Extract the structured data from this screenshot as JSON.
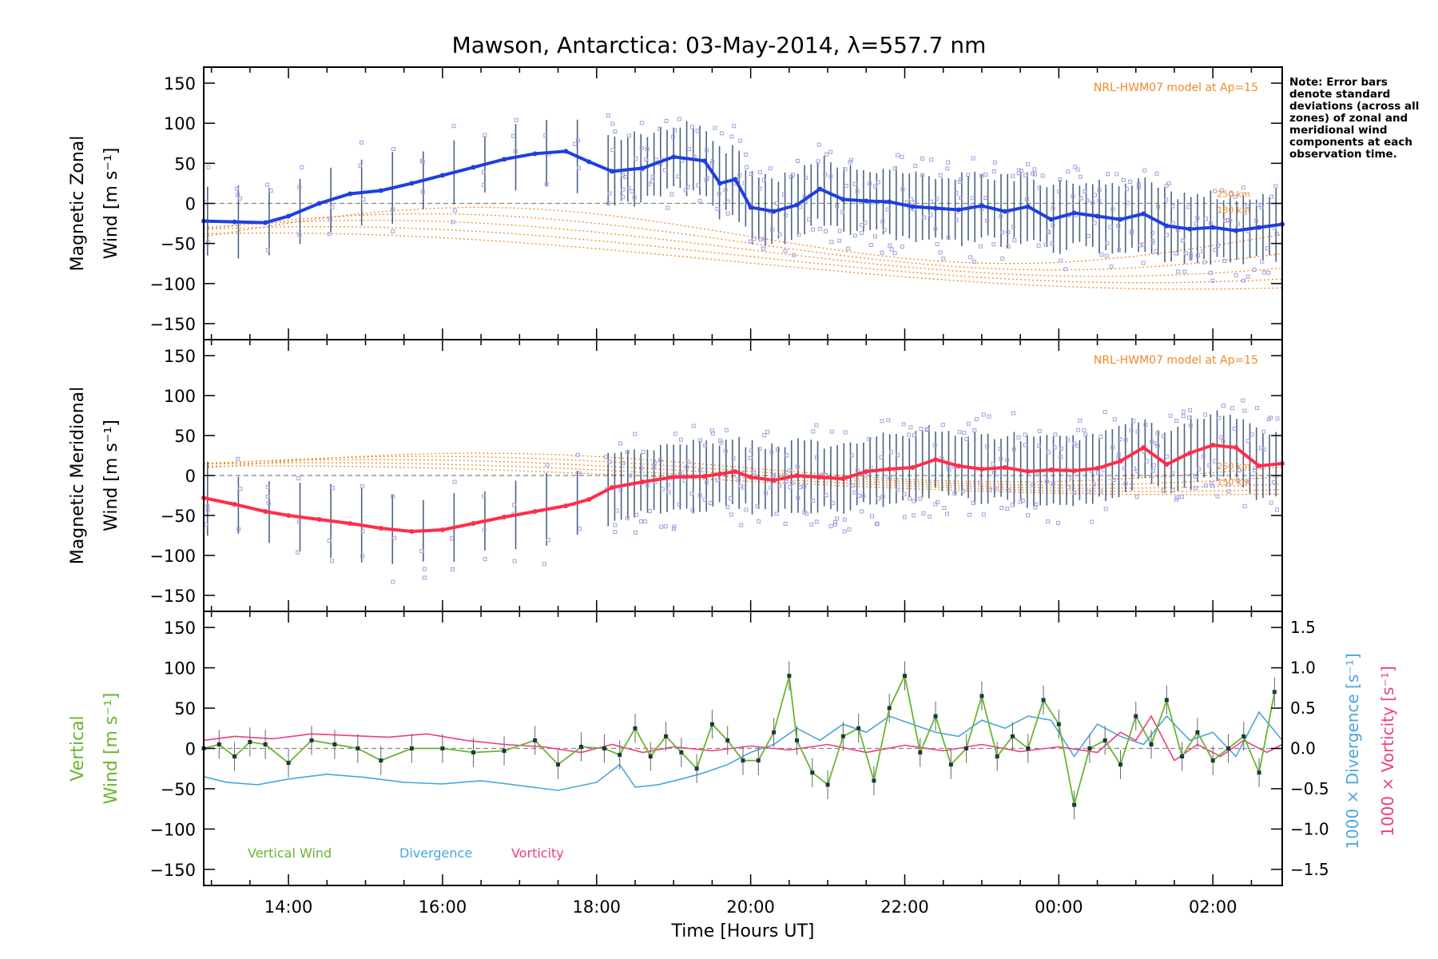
{
  "title": "Mawson, Antarctica: 03-May-2014, λ=557.7 nm",
  "note": "Note: Error bars denote standard deviations (across all zones) of zonal and meridional wind components at each observation time.",
  "colors": {
    "zonal": "#1f3fe0",
    "zonal_light": "#45a6e6",
    "meridional": "#ff2d4b",
    "vertical": "#6ab52e",
    "divergence": "#4aa6dd",
    "vorticity": "#ee3d80",
    "model": "#f08a2a",
    "scatter": "#a49ee0"
  },
  "chart_data": [
    {
      "type": "line",
      "panel": "zonal",
      "ylabel_lines": [
        "Magnetic Zonal",
        "Wind [m s⁻¹]"
      ],
      "annotation": "NRL-HWM07 model at Ap=15",
      "annotation_small": [
        "250 km",
        "180 km"
      ],
      "x_unit": "hours UT since 00:00 03-May-2014",
      "xlim": [
        12.9,
        26.9
      ],
      "ylim": [
        -170,
        170
      ],
      "yticks": [
        150,
        100,
        50,
        0,
        -50,
        -100,
        -150
      ],
      "series": [
        {
          "name": "Mean zonal wind",
          "x": [
            12.9,
            13.3,
            13.7,
            14.0,
            14.4,
            14.8,
            15.2,
            15.6,
            16.0,
            16.4,
            16.8,
            17.2,
            17.6,
            17.9,
            18.2,
            18.6,
            19.0,
            19.4,
            19.6,
            19.8,
            20.0,
            20.3,
            20.6,
            20.9,
            21.2,
            21.5,
            21.8,
            22.1,
            22.4,
            22.7,
            23.0,
            23.3,
            23.6,
            23.9,
            24.2,
            24.5,
            24.8,
            25.1,
            25.4,
            25.7,
            26.0,
            26.3,
            26.6,
            26.9
          ],
          "y": [
            -22,
            -23,
            -24,
            -16,
            0,
            12,
            16,
            25,
            35,
            45,
            55,
            62,
            65,
            52,
            40,
            44,
            58,
            53,
            25,
            30,
            -5,
            -10,
            -2,
            18,
            5,
            3,
            2,
            -4,
            -6,
            -8,
            -3,
            -10,
            -4,
            -20,
            -12,
            -16,
            -20,
            -13,
            -28,
            -32,
            -30,
            -34,
            -30,
            -26
          ]
        }
      ]
    },
    {
      "type": "line",
      "panel": "meridional",
      "ylabel_lines": [
        "Magnetic Meridional",
        "Wind [m s⁻¹]"
      ],
      "annotation": "NRL-HWM07 model at Ap=15",
      "annotation_small": [
        "250 km",
        "150 km"
      ],
      "x_unit": "hours UT since 00:00 03-May-2014",
      "xlim": [
        12.9,
        26.9
      ],
      "ylim": [
        -170,
        170
      ],
      "yticks": [
        150,
        100,
        50,
        0,
        -50,
        -100,
        -150
      ],
      "series": [
        {
          "name": "Mean meridional wind",
          "x": [
            12.9,
            13.3,
            13.7,
            14.0,
            14.4,
            14.8,
            15.2,
            15.6,
            16.0,
            16.4,
            16.8,
            17.2,
            17.6,
            17.9,
            18.2,
            18.6,
            19.0,
            19.4,
            19.6,
            19.8,
            20.0,
            20.3,
            20.6,
            20.9,
            21.2,
            21.5,
            21.8,
            22.1,
            22.4,
            22.7,
            23.0,
            23.3,
            23.6,
            23.9,
            24.2,
            24.5,
            24.8,
            25.1,
            25.4,
            25.7,
            26.0,
            26.3,
            26.6,
            26.9
          ],
          "y": [
            -28,
            -36,
            -45,
            -50,
            -55,
            -60,
            -66,
            -70,
            -68,
            -60,
            -52,
            -45,
            -38,
            -30,
            -15,
            -8,
            -2,
            -1,
            2,
            5,
            -2,
            -6,
            0,
            -2,
            -4,
            5,
            8,
            10,
            20,
            12,
            8,
            10,
            5,
            7,
            6,
            9,
            18,
            35,
            14,
            28,
            38,
            35,
            12,
            15
          ]
        }
      ]
    },
    {
      "type": "line",
      "panel": "vertical",
      "ylabel_lines": [
        "Vertical",
        "Wind [m s⁻¹]"
      ],
      "right_axis_labels": [
        "1000 × Divergence [s⁻¹]",
        "1000 × Vorticity [s⁻¹]"
      ],
      "legend": [
        "Vertical Wind",
        "Divergence",
        "Vorticity"
      ],
      "legend_position": "bottom-left",
      "xlabel": "Time [Hours UT]",
      "xtick_labels": [
        "14:00",
        "16:00",
        "18:00",
        "20:00",
        "22:00",
        "00:00",
        "02:00"
      ],
      "xtick_values": [
        14,
        16,
        18,
        20,
        22,
        24,
        26
      ],
      "x_unit": "hours UT since 00:00 03-May-2014",
      "xlim": [
        12.9,
        26.9
      ],
      "ylim": [
        -170,
        170
      ],
      "yticks": [
        150,
        100,
        50,
        0,
        -50,
        -100,
        -150
      ],
      "ylim_right": [
        -1.7,
        1.7
      ],
      "yticks_right": [
        1.5,
        1.0,
        0.5,
        0.0,
        -0.5,
        -1.0,
        -1.5
      ],
      "series": [
        {
          "name": "Vertical Wind",
          "x": [
            12.9,
            13.1,
            13.3,
            13.5,
            13.7,
            14.0,
            14.3,
            14.6,
            14.9,
            15.2,
            15.6,
            16.0,
            16.4,
            16.8,
            17.2,
            17.5,
            17.8,
            18.1,
            18.3,
            18.5,
            18.7,
            18.9,
            19.1,
            19.3,
            19.5,
            19.7,
            19.9,
            20.1,
            20.3,
            20.5,
            20.6,
            20.8,
            21.0,
            21.2,
            21.4,
            21.6,
            21.8,
            22.0,
            22.2,
            22.4,
            22.6,
            22.8,
            23.0,
            23.2,
            23.4,
            23.6,
            23.8,
            24.0,
            24.2,
            24.4,
            24.6,
            24.8,
            25.0,
            25.2,
            25.4,
            25.6,
            25.8,
            26.0,
            26.2,
            26.4,
            26.6,
            26.8
          ],
          "y": [
            0,
            5,
            -10,
            8,
            5,
            -18,
            10,
            5,
            0,
            -15,
            0,
            0,
            -5,
            -3,
            10,
            -20,
            2,
            0,
            -8,
            25,
            -10,
            15,
            -5,
            -25,
            30,
            10,
            -15,
            -15,
            20,
            90,
            10,
            -30,
            -45,
            15,
            25,
            -40,
            50,
            90,
            -5,
            40,
            -20,
            0,
            65,
            -10,
            15,
            0,
            60,
            30,
            -70,
            0,
            10,
            -20,
            40,
            5,
            60,
            -10,
            20,
            -15,
            0,
            15,
            -30,
            70
          ],
          "color": "#6ab52e"
        },
        {
          "name": "Divergence",
          "axis": "right",
          "x": [
            12.9,
            13.2,
            13.6,
            14.0,
            14.5,
            15.0,
            15.5,
            16.0,
            16.5,
            17.0,
            17.5,
            18.0,
            18.3,
            18.5,
            18.8,
            19.1,
            19.4,
            19.7,
            20.0,
            20.3,
            20.6,
            20.9,
            21.2,
            21.5,
            21.8,
            22.1,
            22.4,
            22.7,
            23.0,
            23.3,
            23.6,
            23.9,
            24.2,
            24.5,
            24.8,
            25.1,
            25.4,
            25.7,
            26.0,
            26.3,
            26.6,
            26.9
          ],
          "y": [
            -0.35,
            -0.42,
            -0.45,
            -0.38,
            -0.32,
            -0.36,
            -0.42,
            -0.44,
            -0.4,
            -0.46,
            -0.52,
            -0.42,
            -0.2,
            -0.48,
            -0.45,
            -0.38,
            -0.3,
            -0.2,
            -0.05,
            0.05,
            0.25,
            0.1,
            0.3,
            0.2,
            0.4,
            0.3,
            0.2,
            0.15,
            0.35,
            0.25,
            0.4,
            0.35,
            -0.1,
            0.3,
            0.15,
            0.05,
            0.4,
            0.1,
            0.2,
            -0.1,
            0.45,
            0.1
          ],
          "color": "#4aa6dd"
        },
        {
          "name": "Vorticity",
          "axis": "right",
          "x": [
            12.9,
            13.3,
            13.8,
            14.3,
            14.8,
            15.3,
            15.8,
            16.3,
            16.8,
            17.3,
            17.8,
            18.2,
            18.6,
            19.0,
            19.5,
            20.0,
            20.5,
            21.0,
            21.5,
            22.0,
            22.5,
            23.0,
            23.5,
            24.0,
            24.5,
            24.8,
            25.0,
            25.2,
            25.5,
            25.8,
            26.1,
            26.4,
            26.7,
            26.9
          ],
          "y": [
            0.1,
            0.15,
            0.12,
            0.18,
            0.16,
            0.14,
            0.18,
            0.1,
            0.05,
            0.02,
            -0.05,
            0.05,
            -0.05,
            0.02,
            -0.03,
            0.03,
            -0.02,
            0.05,
            -0.05,
            0.04,
            -0.03,
            0.05,
            -0.04,
            0.02,
            -0.05,
            0.2,
            0.1,
            0.4,
            -0.15,
            0.05,
            -0.1,
            0.1,
            -0.05,
            0.05
          ],
          "color": "#ee3d80"
        }
      ]
    }
  ]
}
